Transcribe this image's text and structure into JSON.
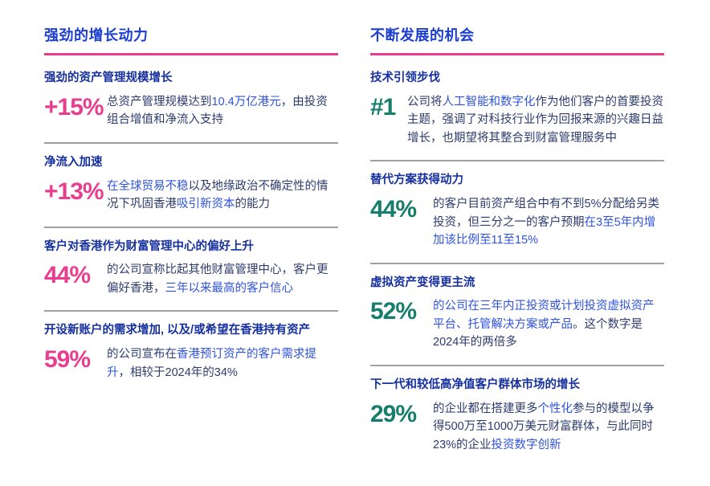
{
  "colors": {
    "title_blue": "#1C3FD2",
    "heading_navy": "#16309E",
    "body_navy": "#2E3B6F",
    "accent_blue": "#2F53DE",
    "pink": "#E93D90",
    "teal": "#177E6C",
    "divider": "#A0A0A0",
    "page_bg": "#FFFFFF"
  },
  "columns": [
    {
      "title": "强劲的增长动力",
      "accent_color": "#E93D90",
      "items": [
        {
          "heading": "强劲的资产管理规模增长",
          "stat": "+15%",
          "segments": [
            {
              "t": "总资产管理规模达到",
              "c": "dark"
            },
            {
              "t": "10.4万亿港元",
              "c": "blue"
            },
            {
              "t": "，由投资组合增值和净流入支持",
              "c": "dark"
            }
          ]
        },
        {
          "heading": "净流入加速",
          "stat": "+13%",
          "segments": [
            {
              "t": "在全球贸易不稳",
              "c": "blue"
            },
            {
              "t": "以及地缘政治不确定性的情况下巩固香港",
              "c": "dark"
            },
            {
              "t": "吸引新资本",
              "c": "blue"
            },
            {
              "t": "的能力",
              "c": "dark"
            }
          ]
        },
        {
          "heading": "客户对香港作为财富管理中心的偏好上升",
          "stat": "44%",
          "segments": [
            {
              "t": "的公司宣称比起其他财富管理中心，客户更偏好香港，",
              "c": "dark"
            },
            {
              "t": "三年以来最高的客户信心",
              "c": "blue"
            }
          ]
        },
        {
          "heading": "开设新账户的需求增加, 以及/或希望在香港持有资产",
          "stat": "59%",
          "segments": [
            {
              "t": "的公司宣布在",
              "c": "dark"
            },
            {
              "t": "香港预订资产的客户需求提升",
              "c": "blue"
            },
            {
              "t": "，相较于2024年的34%",
              "c": "dark"
            }
          ]
        }
      ]
    },
    {
      "title": "不断发展的机会",
      "accent_color": "#177E6C",
      "items": [
        {
          "heading": "技术引领步伐",
          "stat": "#1",
          "segments": [
            {
              "t": "公司将",
              "c": "dark"
            },
            {
              "t": "人工智能和数字化",
              "c": "blue"
            },
            {
              "t": "作为他们客户的首要投资主题，强调了对科技行业作为回报来源的兴趣日益增长，也期望将其整合到财富管理服务中",
              "c": "dark"
            }
          ]
        },
        {
          "heading": "替代方案获得动力",
          "stat": "44%",
          "segments": [
            {
              "t": "的客户目前资产组合中有不到5%分配给另类投资，但三分之一的客户预期",
              "c": "dark"
            },
            {
              "t": "在3至5年内增加该比例至11至15%",
              "c": "blue"
            }
          ]
        },
        {
          "heading": "虚拟资产变得更主流",
          "stat": "52%",
          "segments": [
            {
              "t": "的公司在三年内正投资或计划投资虚拟资产平台、托管解决方案或产品",
              "c": "blue"
            },
            {
              "t": "。这个数字是2024年的两倍多",
              "c": "dark"
            }
          ]
        },
        {
          "heading": "下一代和较低高净值客户群体市场的增长",
          "stat": "29%",
          "segments": [
            {
              "t": "的企业都在搭建更多",
              "c": "dark"
            },
            {
              "t": "个性化",
              "c": "blue"
            },
            {
              "t": "参与的模型以争得500万至1000万美元财富群体，与此同时23%的企业",
              "c": "dark"
            },
            {
              "t": "投资数字创新",
              "c": "blue"
            }
          ]
        }
      ]
    }
  ]
}
